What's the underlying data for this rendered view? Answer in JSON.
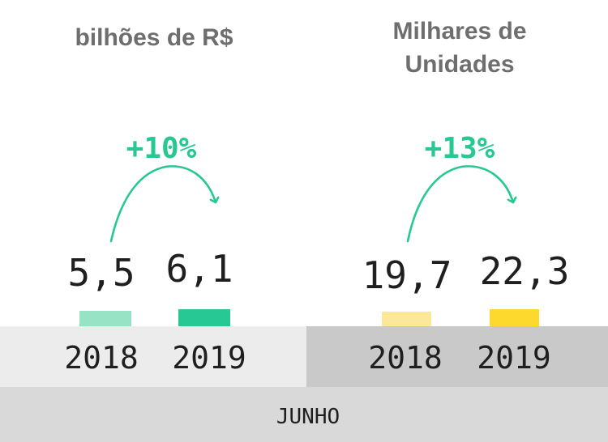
{
  "chart_data": [
    {
      "type": "bar",
      "title": "bilhões de R$",
      "categories": [
        "2018",
        "2019"
      ],
      "values": [
        5.5,
        6.1
      ],
      "value_labels": [
        "5,5",
        "6,1"
      ],
      "growth_label": "+10%",
      "colors": {
        "2018": "#96e3c6",
        "2019": "#27c893",
        "accent": "#27c893"
      }
    },
    {
      "type": "bar",
      "title_lines": [
        "Milhares de",
        "Unidades"
      ],
      "categories": [
        "2018",
        "2019"
      ],
      "values": [
        19.7,
        22.3
      ],
      "value_labels": [
        "19,7",
        "22,3"
      ],
      "growth_label": "+13%",
      "colors": {
        "2018": "#fde89a",
        "2019": "#fdd92d",
        "accent": "#27c893"
      }
    }
  ],
  "footer": {
    "month_label": "JUNHO"
  },
  "colors": {
    "left_band": "#ececec",
    "right_band": "#c9c9c9",
    "bottom_band": "#d9d9d9"
  }
}
